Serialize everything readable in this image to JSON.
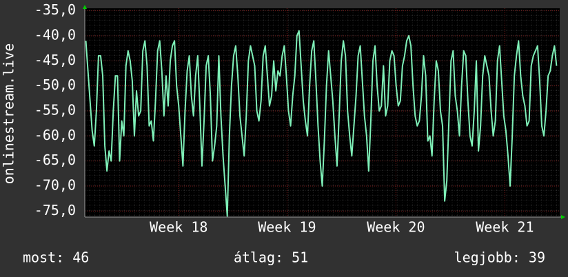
{
  "chart_data": {
    "type": "line",
    "y_label": "onlinestream.live",
    "color": "#7ff0b8",
    "grid": true,
    "ylim": [
      -76.2,
      -34.5
    ],
    "yticks": [
      {
        "value": -75,
        "label": "-75,0"
      },
      {
        "value": -70,
        "label": "-70,0"
      },
      {
        "value": -65,
        "label": "-65,0"
      },
      {
        "value": -60,
        "label": "-60,0"
      },
      {
        "value": -55,
        "label": "-55,0"
      },
      {
        "value": -50,
        "label": "-50,0"
      },
      {
        "value": -45,
        "label": "-45,0"
      },
      {
        "value": -40,
        "label": "-40,0"
      },
      {
        "value": -35,
        "label": "-35,0"
      }
    ],
    "xlim": [
      -0.5,
      224.5
    ],
    "xticks": [
      {
        "value": 44,
        "label": "Week 18"
      },
      {
        "value": 95.3,
        "label": "Week 19"
      },
      {
        "value": 146.9,
        "label": "Week 20"
      },
      {
        "value": 198.5,
        "label": "Week 21"
      }
    ],
    "values": [
      -41,
      -47,
      -53,
      -59,
      -62,
      -55,
      -44,
      -44,
      -48,
      -62,
      -67,
      -63,
      -65,
      -55,
      -48,
      -48,
      -65,
      -57,
      -60,
      -46,
      -43,
      -45,
      -49,
      -60,
      -51,
      -56,
      -55,
      -43,
      -41,
      -46,
      -58,
      -57,
      -61,
      -53,
      -43,
      -41,
      -47,
      -56,
      -48,
      -54,
      -45,
      -42,
      -41,
      -50,
      -54,
      -60,
      -66,
      -55,
      -47,
      -44,
      -52,
      -56,
      -48,
      -44,
      -54,
      -66,
      -57,
      -46,
      -44,
      -52,
      -65,
      -62,
      -58,
      -44,
      -56,
      -64,
      -70,
      -76,
      -60,
      -50,
      -44,
      -42,
      -48,
      -56,
      -60,
      -64,
      -56,
      -45,
      -42,
      -44,
      -46,
      -55,
      -57,
      -53,
      -44,
      -42,
      -48,
      -54,
      -52,
      -45,
      -51,
      -47,
      -48,
      -44,
      -42,
      -48,
      -55,
      -58,
      -52,
      -48,
      -40,
      -39,
      -46,
      -53,
      -57,
      -60,
      -50,
      -43,
      -41,
      -49,
      -58,
      -65,
      -70,
      -61,
      -50,
      -43,
      -48,
      -53,
      -60,
      -66,
      -56,
      -45,
      -41,
      -44,
      -55,
      -60,
      -64,
      -58,
      -52,
      -44,
      -42,
      -49,
      -56,
      -60,
      -67,
      -57,
      -45,
      -42,
      -50,
      -55,
      -54,
      -46,
      -56,
      -54,
      -45,
      -43,
      -44,
      -50,
      -54,
      -53,
      -46,
      -44,
      -41,
      -40,
      -42,
      -50,
      -56,
      -58,
      -57,
      -52,
      -44,
      -48,
      -61,
      -60,
      -64,
      -53,
      -45,
      -47,
      -55,
      -58,
      -73,
      -69,
      -57,
      -45,
      -43,
      -52,
      -55,
      -60,
      -50,
      -43,
      -44,
      -53,
      -60,
      -62,
      -55,
      -45,
      -63,
      -58,
      -48,
      -44,
      -46,
      -48,
      -55,
      -60,
      -57,
      -45,
      -42,
      -49,
      -56,
      -59,
      -64,
      -70,
      -60,
      -48,
      -44,
      -41,
      -48,
      -52,
      -54,
      -58,
      -57,
      -46,
      -44,
      -43,
      -42,
      -49,
      -58,
      -60,
      -55,
      -48,
      -47,
      -44,
      -42,
      -46
    ],
    "stats": [
      "most: 46",
      "átlag: 51",
      "legjobb: 39"
    ]
  }
}
